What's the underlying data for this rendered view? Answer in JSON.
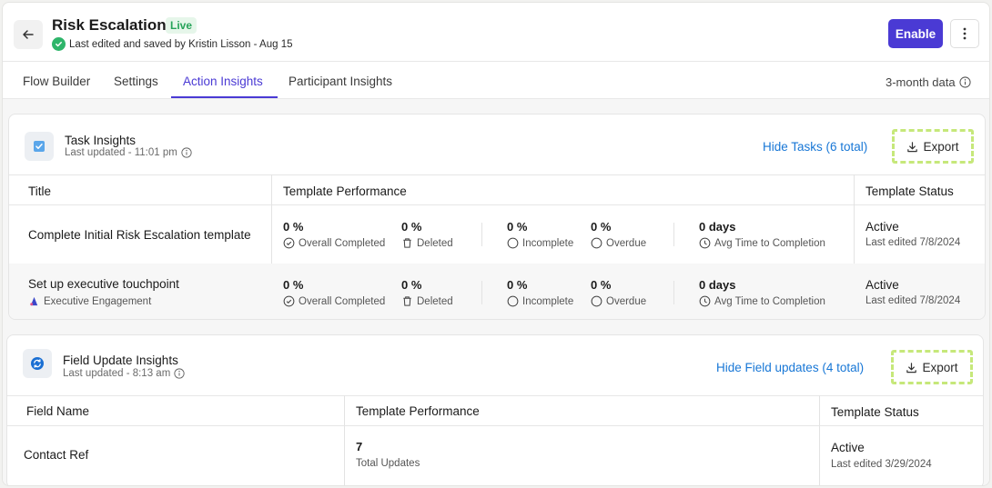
{
  "header": {
    "title": "Risk Escalation",
    "badge": "Live",
    "saved_text": "Last edited and saved by Kristin Lisson - Aug 15",
    "enable_label": "Enable"
  },
  "tabs": [
    "Flow Builder",
    "Settings",
    "Action Insights",
    "Participant Insights"
  ],
  "active_tab": "Action Insights",
  "period_label": "3-month data",
  "task_card": {
    "title": "Task Insights",
    "updated": "Last updated - 11:01 pm",
    "hide_link": "Hide Tasks (6 total)",
    "export_label": "Export",
    "columns": [
      "Title",
      "Template Performance",
      "Template Status"
    ],
    "rows": [
      {
        "title": "Complete Initial Risk Escalation template",
        "tag": "",
        "metrics": [
          {
            "value": "0 %",
            "label": "Overall Completed"
          },
          {
            "value": "0 %",
            "label": "Deleted"
          },
          {
            "value": "0 %",
            "label": "Incomplete"
          },
          {
            "value": "0 %",
            "label": "Overdue"
          },
          {
            "value": "0 days",
            "label": "Avg Time to Completion"
          }
        ],
        "status": "Active",
        "status_sub": "Last edited 7/8/2024"
      },
      {
        "title": "Set up executive touchpoint",
        "tag": "Executive Engagement",
        "metrics": [
          {
            "value": "0 %",
            "label": "Overall Completed"
          },
          {
            "value": "0 %",
            "label": "Deleted"
          },
          {
            "value": "0 %",
            "label": "Incomplete"
          },
          {
            "value": "0 %",
            "label": "Overdue"
          },
          {
            "value": "0 days",
            "label": "Avg Time to Completion"
          }
        ],
        "status": "Active",
        "status_sub": "Last edited 7/8/2024"
      }
    ]
  },
  "field_card": {
    "title": "Field Update Insights",
    "updated": "Last updated - 8:13 am",
    "hide_link": "Hide Field updates (4 total)",
    "export_label": "Export",
    "columns": [
      "Field Name",
      "Template Performance",
      "Template Status"
    ],
    "rows": [
      {
        "name": "Contact Ref",
        "value": "7",
        "value_label": "Total Updates",
        "status": "Active",
        "status_sub": "Last edited 3/29/2024"
      }
    ]
  },
  "colors": {
    "accent": "#4a3ad4",
    "link": "#1877d6",
    "live": "#27a35a",
    "export_border": "#c6e87a"
  }
}
